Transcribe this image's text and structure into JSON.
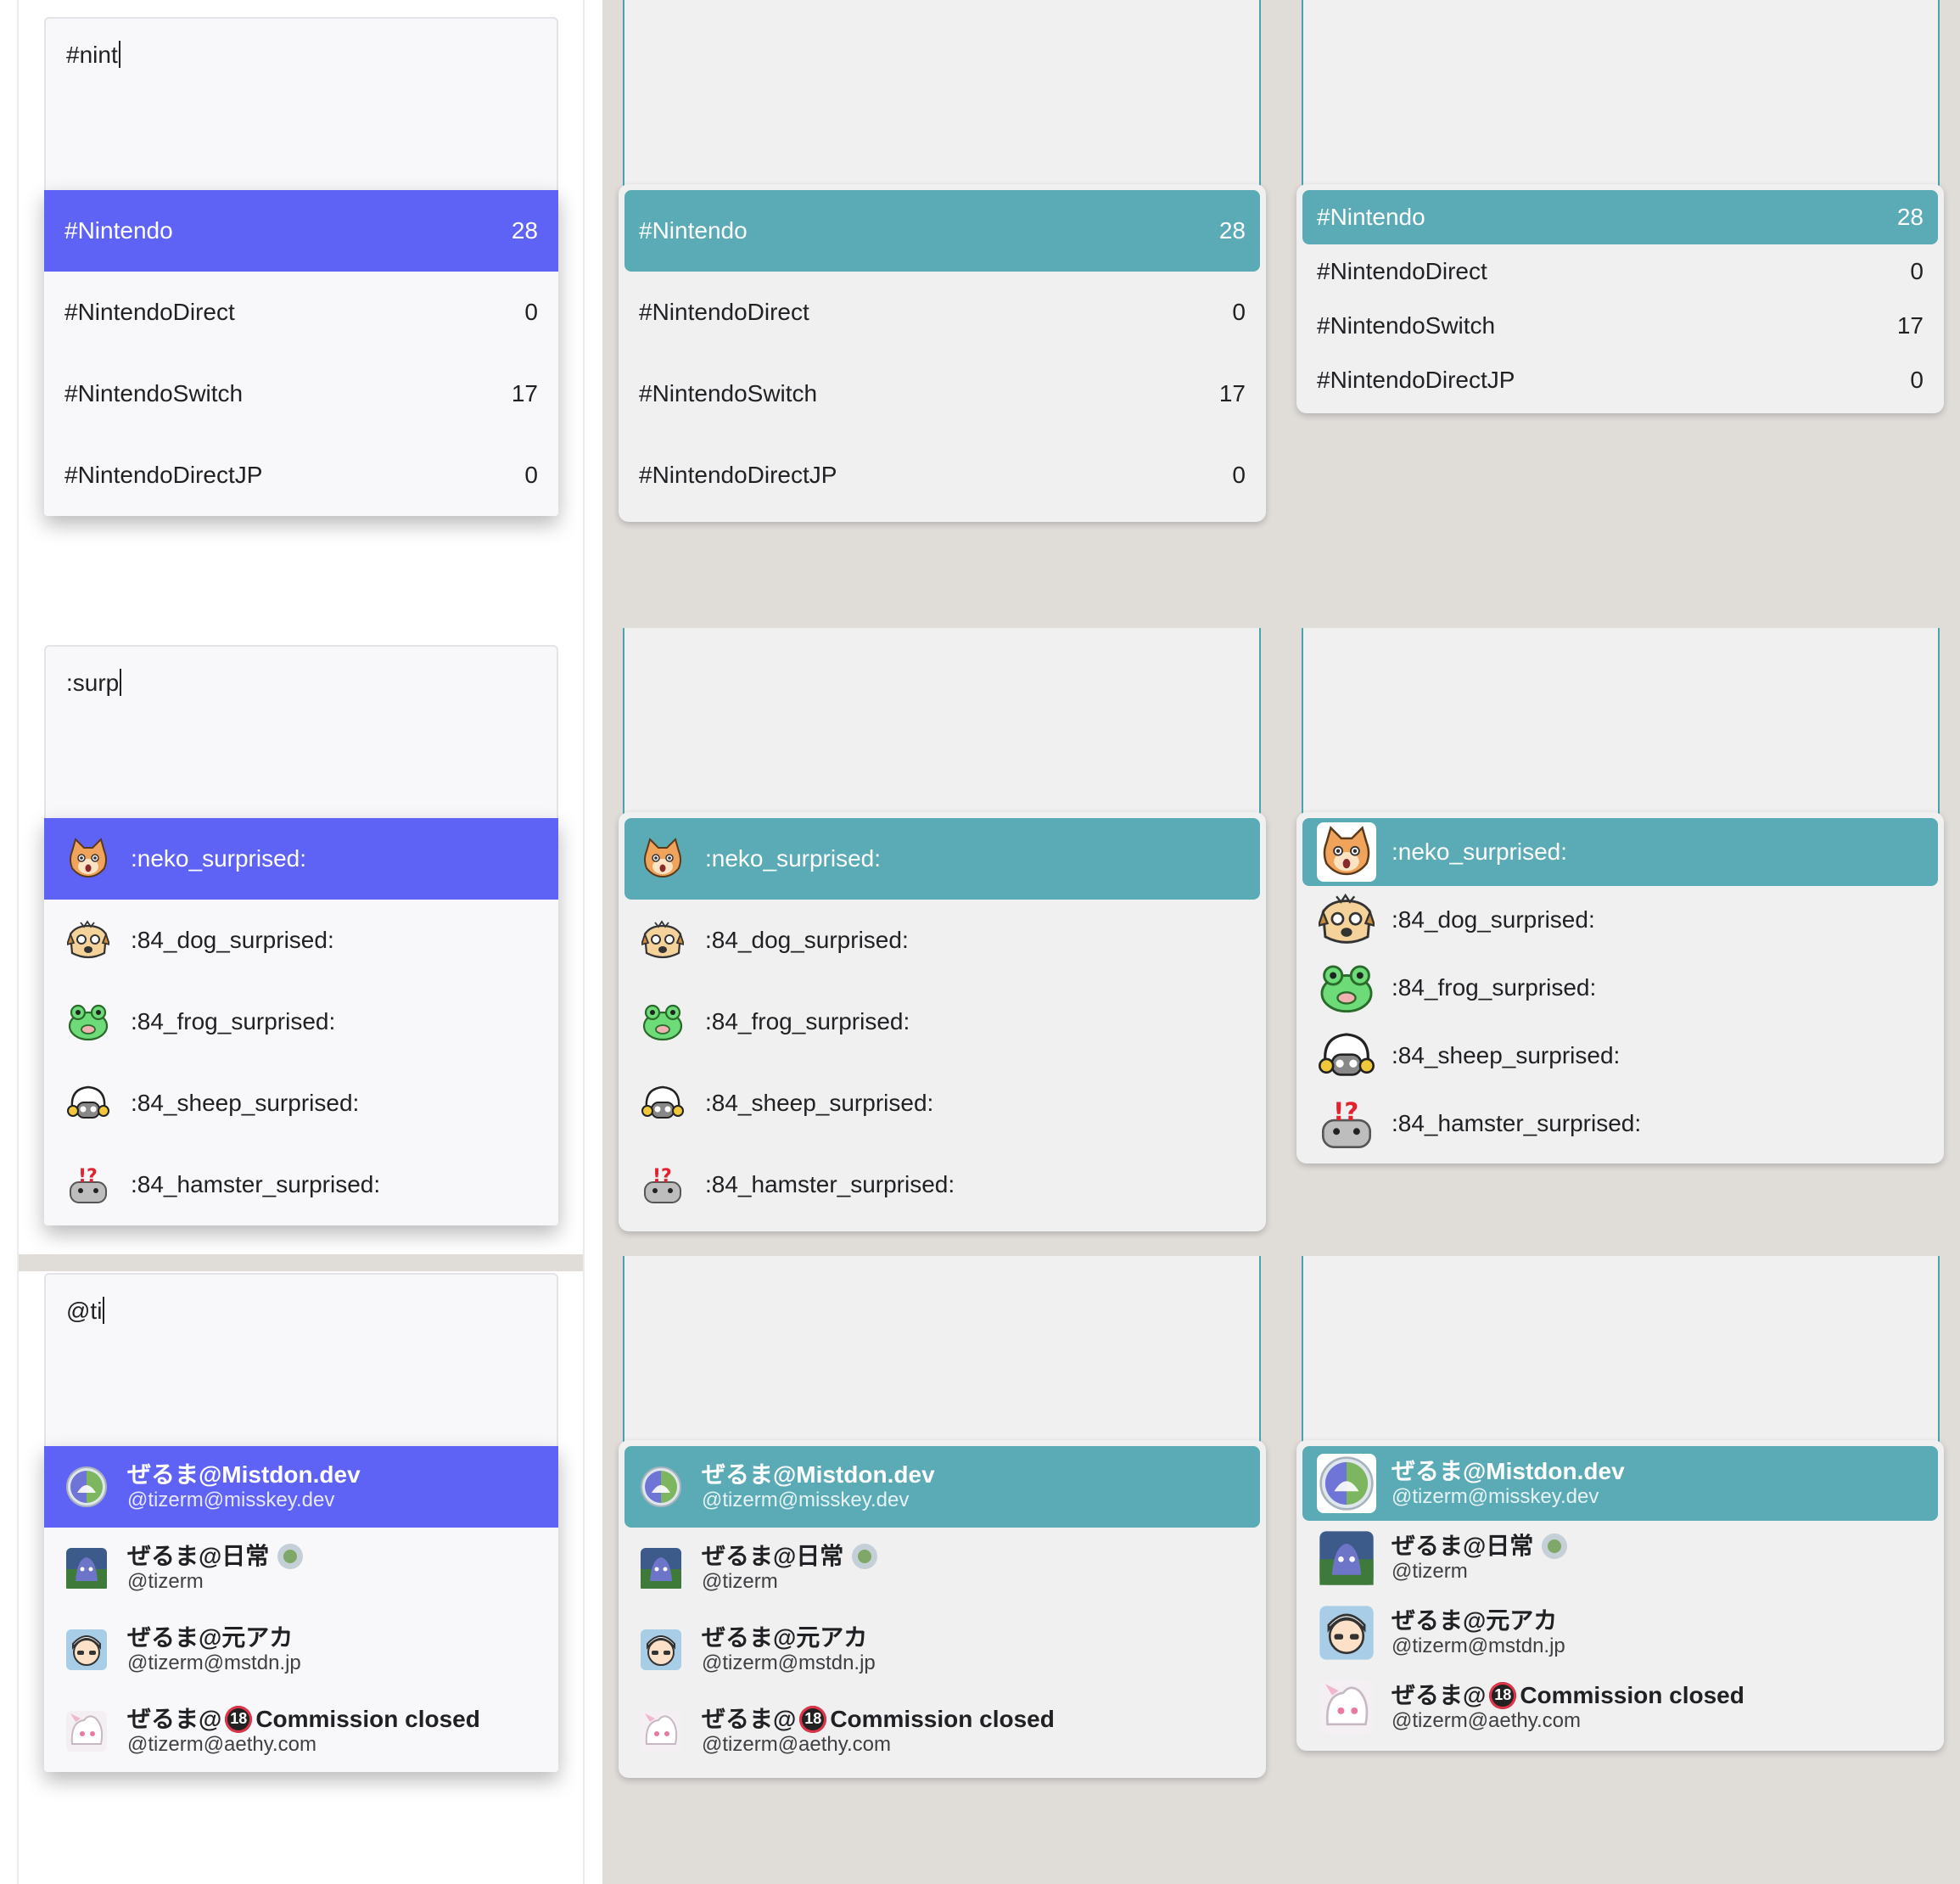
{
  "queries": {
    "hashtag": "#nint",
    "emoji": ":surp",
    "account": "@ti"
  },
  "hashtags": [
    {
      "name": "#Nintendo",
      "count": "28"
    },
    {
      "name": "#NintendoDirect",
      "count": "0"
    },
    {
      "name": "#NintendoSwitch",
      "count": "17"
    },
    {
      "name": "#NintendoDirectJP",
      "count": "0"
    }
  ],
  "emojis": [
    {
      "shortcode": ":neko_surprised:",
      "icon": "cat-face-icon"
    },
    {
      "shortcode": ":84_dog_surprised:",
      "icon": "dog-face-icon"
    },
    {
      "shortcode": ":84_frog_surprised:",
      "icon": "frog-face-icon"
    },
    {
      "shortcode": ":84_sheep_surprised:",
      "icon": "sheep-face-icon"
    },
    {
      "shortcode": ":84_hamster_surprised:",
      "icon": "hamster-face-icon"
    }
  ],
  "accounts": [
    {
      "display_name": "ぜるま@Mistdon.dev",
      "handle": "@tizerm@misskey.dev"
    },
    {
      "display_name": "ぜるま@日常",
      "handle": "@tizerm"
    },
    {
      "display_name": "ぜるま@元アカ",
      "handle": "@tizerm@mstdn.jp"
    },
    {
      "display_name_prefix": "ぜるま@",
      "r18_badge": "18",
      "display_name_suffix": "Commission closed",
      "handle": "@tizerm@aethy.com"
    }
  ],
  "colors": {
    "selected_blue": "#5f63f5",
    "selected_teal": "#5aabb5",
    "teal_border": "#4aa3ad",
    "backdrop": "#e0ddd9"
  }
}
